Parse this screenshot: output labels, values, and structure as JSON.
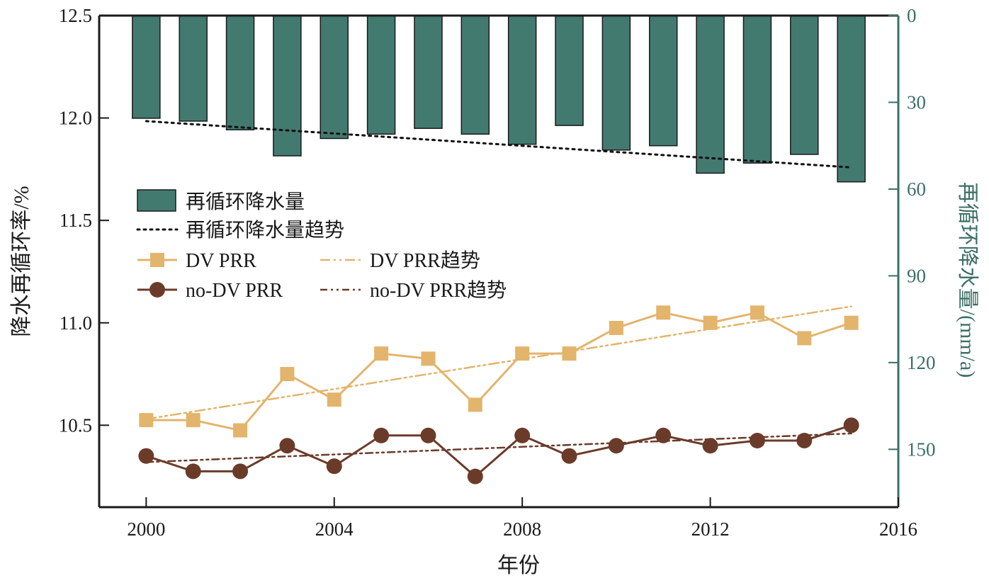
{
  "chart_data": {
    "type": "bar+line",
    "x_axis": {
      "label": "年份",
      "range": [
        1999,
        2016
      ],
      "ticks": [
        2000,
        2004,
        2008,
        2012,
        2016
      ],
      "tick_labels": [
        "2000",
        "2004",
        "2008",
        "2012",
        "2016"
      ]
    },
    "y_left": {
      "label": "降水再循环率/%",
      "range": [
        10.1,
        12.5
      ],
      "ticks": [
        10.5,
        11.0,
        11.5,
        12.0,
        12.5
      ],
      "tick_labels": [
        "10.5",
        "11.0",
        "11.5",
        "12.0",
        "12.5"
      ]
    },
    "y_right": {
      "label": "再循环降水量/(mm/a)",
      "range": [
        0,
        170
      ],
      "inverted": true,
      "ticks": [
        0,
        30,
        60,
        90,
        120,
        150
      ],
      "tick_labels": [
        "0",
        "30",
        "60",
        "90",
        "120",
        "150"
      ]
    },
    "years": [
      2000,
      2001,
      2002,
      2003,
      2004,
      2005,
      2006,
      2007,
      2008,
      2009,
      2010,
      2011,
      2012,
      2013,
      2014,
      2015
    ],
    "series": [
      {
        "name": "再循环降水量",
        "kind": "bar",
        "axis": "right",
        "color": "#437a70",
        "values": [
          35.5,
          36.5,
          39.5,
          48.5,
          42.5,
          41.0,
          39.0,
          41.0,
          44.5,
          38.0,
          46.5,
          45.0,
          54.5,
          51.0,
          48.0,
          57.5
        ]
      },
      {
        "name": "再循环降水量趋势",
        "kind": "trend",
        "axis": "right",
        "color": "#111111",
        "start": [
          2000,
          36.5
        ],
        "end": [
          2015,
          52.5
        ]
      },
      {
        "name": "DV PRR",
        "kind": "line",
        "axis": "left",
        "marker": "square",
        "color": "#e3b46c",
        "values": [
          10.525,
          10.525,
          10.475,
          10.75,
          10.625,
          10.85,
          10.825,
          10.6,
          10.85,
          10.85,
          10.975,
          11.05,
          11.0,
          11.05,
          10.925,
          11.0
        ]
      },
      {
        "name": "DV PRR趋势",
        "kind": "trend",
        "axis": "left",
        "color": "#e3b46c",
        "start": [
          2000,
          10.53
        ],
        "end": [
          2015,
          11.08
        ]
      },
      {
        "name": "no-DV PRR",
        "kind": "line",
        "axis": "left",
        "marker": "circle",
        "color": "#6b3b2a",
        "values": [
          10.35,
          10.275,
          10.275,
          10.4,
          10.3,
          10.45,
          10.45,
          10.25,
          10.45,
          10.35,
          10.4,
          10.45,
          10.4,
          10.425,
          10.425,
          10.5
        ]
      },
      {
        "name": "no-DV PRR趋势",
        "kind": "trend",
        "axis": "left",
        "color": "#6b3b2a",
        "start": [
          2000,
          10.32
        ],
        "end": [
          2015,
          10.46
        ]
      }
    ],
    "legend": {
      "placement": "inside-left",
      "items": [
        {
          "label": "再循环降水量",
          "series": 0
        },
        {
          "label": "再循环降水量趋势",
          "series": 1
        },
        {
          "label": "DV PRR",
          "series": 2
        },
        {
          "label": "DV PRR趋势",
          "series": 3
        },
        {
          "label": "no-DV PRR",
          "series": 4
        },
        {
          "label": "no-DV PRR趋势",
          "series": 5
        }
      ]
    },
    "grid": false
  }
}
